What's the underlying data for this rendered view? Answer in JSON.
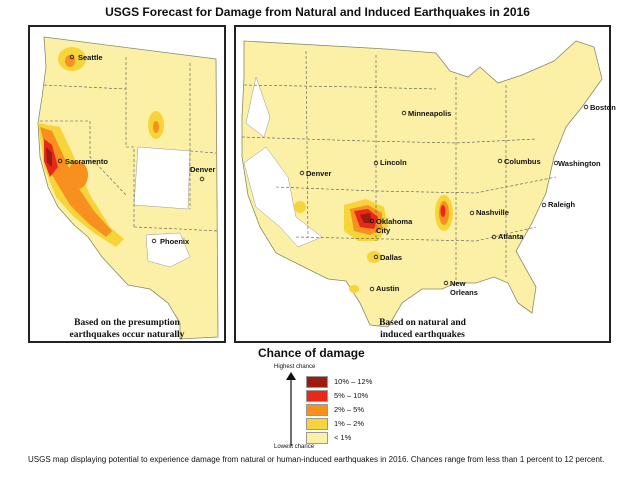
{
  "title": "USGS Forecast for Damage from Natural and Induced Earthquakes in 2016",
  "panels": {
    "left": {
      "caption_1": "Based on the presumption",
      "caption_2": "earthquakes occur naturally"
    },
    "right": {
      "caption_1": "Based on natural and",
      "caption_2": "induced earthquakes"
    }
  },
  "cities_left": [
    "Seattle",
    "Sacramento",
    "Denver",
    "Phoenix"
  ],
  "cities_right": [
    "Minneapolis",
    "Boston",
    "Denver",
    "Lincoln",
    "Columbus",
    "Washington",
    "Oklahoma",
    "City",
    "Nashville",
    "Raleigh",
    "Atlanta",
    "Dallas",
    "Austin",
    "New",
    "Orleans"
  ],
  "legend": {
    "title": "Chance of damage",
    "highest": "Highest chance",
    "lowest": "Lowest chance",
    "items": [
      {
        "label": "10% – 12%",
        "color": "#9e1b10"
      },
      {
        "label": "5% – 10%",
        "color": "#e8281a"
      },
      {
        "label": "2% – 5%",
        "color": "#f7901e"
      },
      {
        "label": "1% – 2%",
        "color": "#f7d43a"
      },
      {
        "label": "< 1%",
        "color": "#fbf0a6"
      }
    ]
  },
  "colors": {
    "base": "#fbf0a6",
    "low": "#f7d43a",
    "mid": "#f7901e",
    "high": "#e8281a",
    "highest": "#9e1b10",
    "nodata": "#ffffff"
  },
  "caption": "USGS map displaying potential to experience damage from natural or human-induced earthquakes in 2016. Chances range from less than 1 percent to 12 percent."
}
